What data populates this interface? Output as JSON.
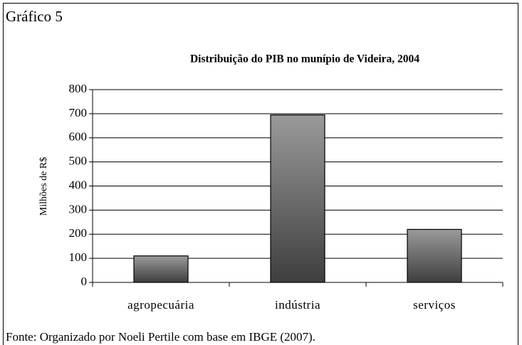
{
  "chart_data": {
    "type": "bar",
    "label": "Gráfico 5",
    "title": "Distribuição do PIB no munípio de Videira, 2004",
    "ylabel": "Milhões de R$",
    "categories": [
      "agropecuária",
      "indústria",
      "serviços"
    ],
    "values": [
      110,
      695,
      220
    ],
    "ylim": [
      0,
      800
    ],
    "yticks": [
      0,
      100,
      200,
      300,
      400,
      500,
      600,
      700,
      800
    ],
    "grid": true,
    "source": "Fonte: Organizado por Noeli Pertile com base em IBGE (2007)."
  }
}
